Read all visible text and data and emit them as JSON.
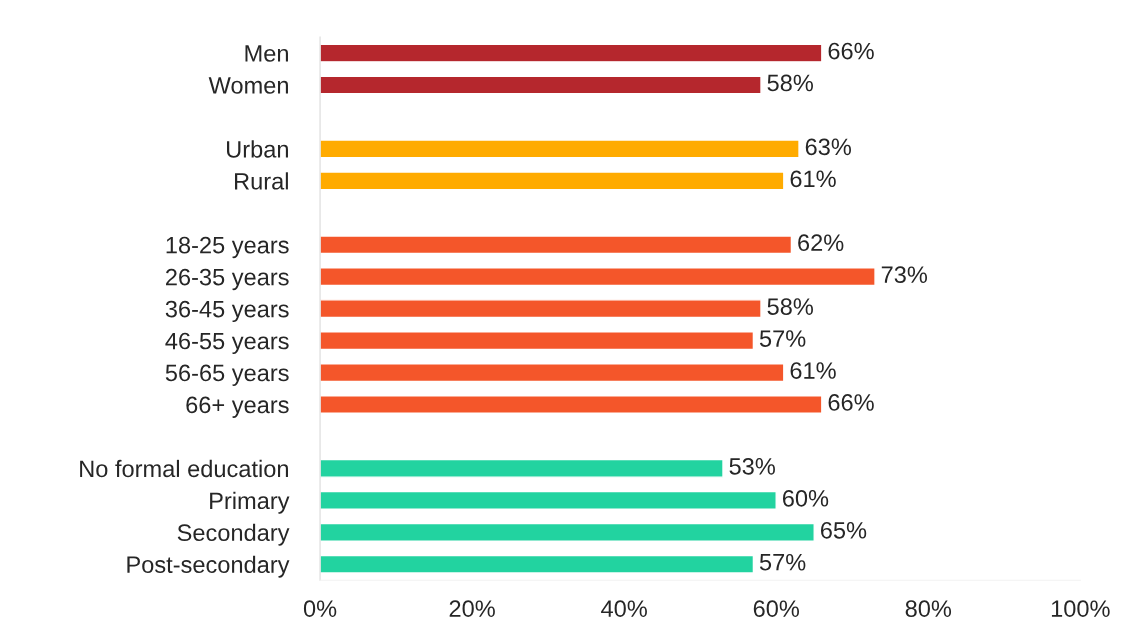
{
  "chart_data": {
    "type": "bar",
    "orientation": "horizontal",
    "categories": [
      "Men",
      "Women",
      null,
      "Urban",
      "Rural",
      null,
      "18-25 years",
      "26-35 years",
      "36-45 years",
      "46-55 years",
      "56-65 years",
      "66+ years",
      null,
      "No formal education",
      "Primary",
      "Secondary",
      "Post-secondary"
    ],
    "values": [
      66,
      58,
      null,
      63,
      61,
      null,
      62,
      73,
      58,
      57,
      61,
      66,
      null,
      53,
      60,
      65,
      57
    ],
    "colors": [
      "#b5272d",
      "#b5272d",
      null,
      "#ffab00",
      "#ffab00",
      null,
      "#f4562a",
      "#f4562a",
      "#f4562a",
      "#f4562a",
      "#f4562a",
      "#f4562a",
      null,
      "#22d3a0",
      "#22d3a0",
      "#22d3a0",
      "#22d3a0"
    ],
    "value_labels": [
      "66%",
      "58%",
      null,
      "63%",
      "61%",
      null,
      "62%",
      "73%",
      "58%",
      "57%",
      "61%",
      "66%",
      null,
      "53%",
      "60%",
      "65%",
      "57%"
    ],
    "xlim": [
      0,
      100
    ],
    "xticks": [
      {
        "value": 0,
        "label": "0%"
      },
      {
        "value": 20,
        "label": "20%"
      },
      {
        "value": 40,
        "label": "40%"
      },
      {
        "value": 60,
        "label": "60%"
      },
      {
        "value": 80,
        "label": "80%"
      },
      {
        "value": 100,
        "label": "100%"
      }
    ],
    "grid": false,
    "legend": false
  }
}
